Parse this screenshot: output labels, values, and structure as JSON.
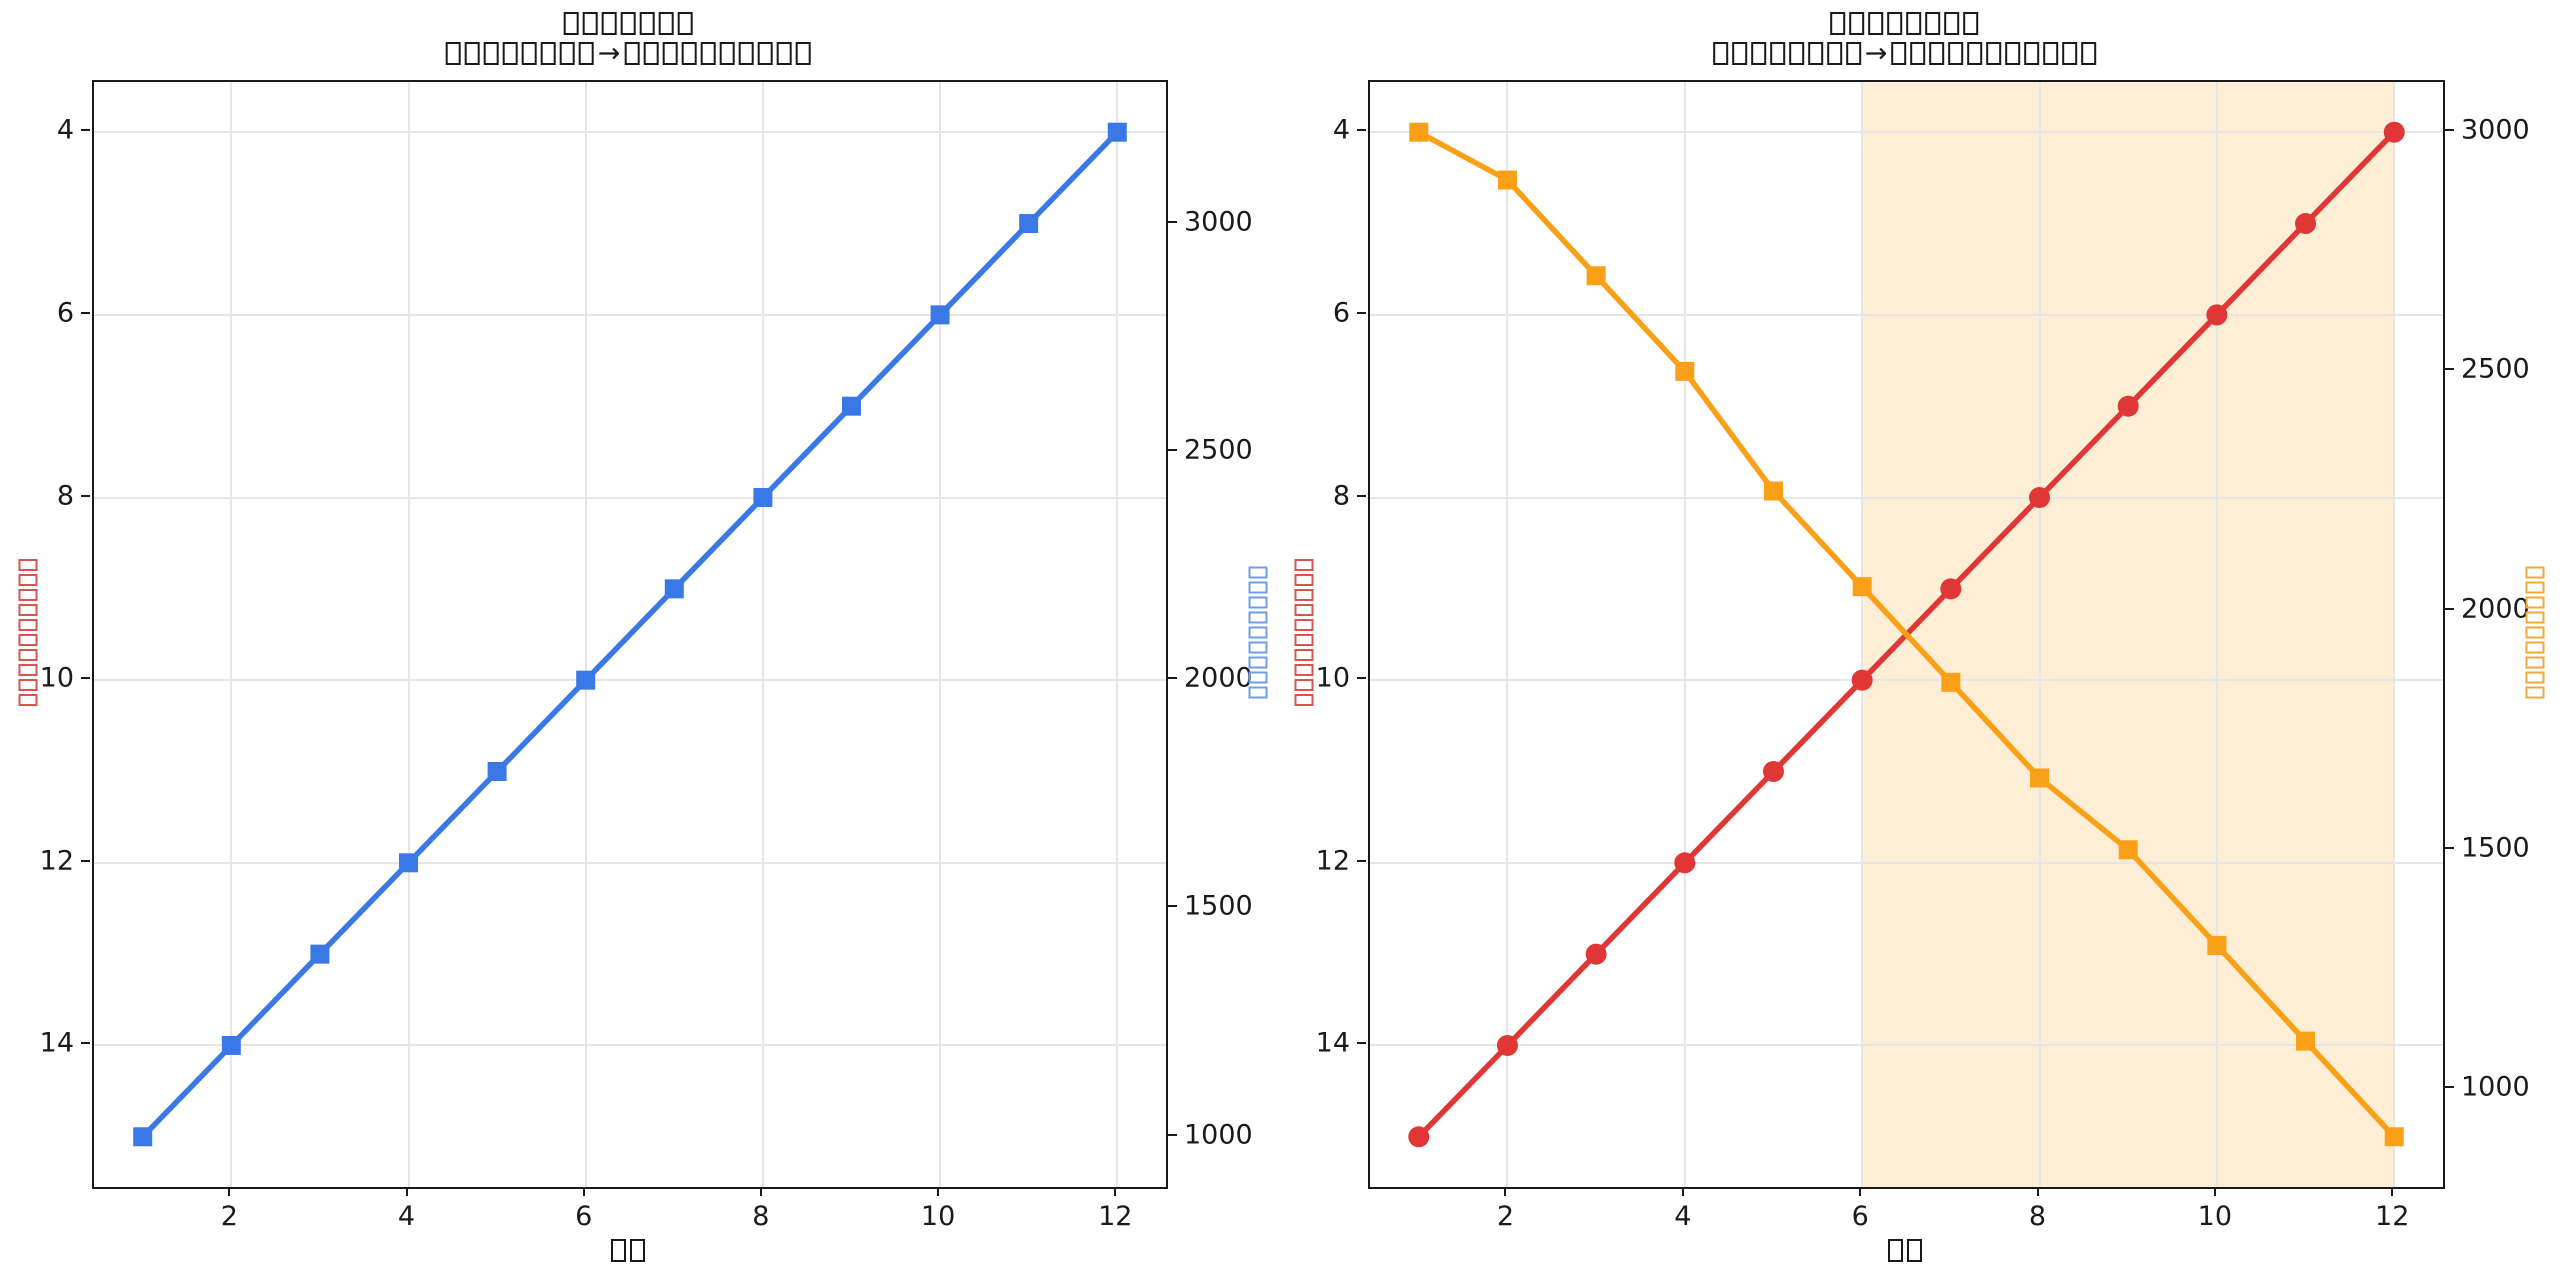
{
  "chart_data": [
    {
      "type": "line",
      "title_lines": [
        "□□□□□□□",
        "□□□□□□□□→□□□□□□□□□□"
      ],
      "xlabel": "□□",
      "x": [
        1,
        2,
        3,
        4,
        5,
        6,
        7,
        8,
        9,
        10,
        11,
        12
      ],
      "x_ticks": [
        2,
        4,
        6,
        8,
        10,
        12
      ],
      "xlim": [
        0.45,
        12.55
      ],
      "grid": true,
      "axes": {
        "left": {
          "label": "□□□□□□□□□□",
          "label_color": "#D9534F",
          "ticks": [
            4,
            6,
            8,
            10,
            12,
            14
          ],
          "lim": [
            3.45,
            15.55
          ],
          "inverted": true,
          "gridlines": true
        },
        "right": {
          "label": "□□□□□□□□□",
          "label_color": "#6F9CEB",
          "ticks": [
            1000,
            1500,
            2000,
            2500,
            3000
          ],
          "lim": [
            890,
            3310
          ],
          "inverted": false,
          "gridlines": false
        }
      },
      "series": [
        {
          "name": "series-blue",
          "axis": "left",
          "color": "#3B78E7",
          "marker": "square",
          "line_width": 5.5,
          "values": [
            15,
            14,
            13,
            12,
            11,
            10,
            9,
            8,
            7,
            6,
            5,
            4
          ]
        }
      ]
    },
    {
      "type": "line",
      "title_lines": [
        "□□□□□□□□",
        "□□□□□□□□→□□□□□□□□□□□"
      ],
      "xlabel": "□□",
      "x": [
        1,
        2,
        3,
        4,
        5,
        6,
        7,
        8,
        9,
        10,
        11,
        12
      ],
      "x_ticks": [
        2,
        4,
        6,
        8,
        10,
        12
      ],
      "xlim": [
        0.45,
        12.55
      ],
      "grid": true,
      "shade": {
        "x_from": 6,
        "x_to": 12,
        "color": "#F9A016",
        "alpha": 0.18
      },
      "axes": {
        "left": {
          "label": "□□□□□□□□□□",
          "label_color": "#D9534F",
          "ticks": [
            4,
            6,
            8,
            10,
            12,
            14
          ],
          "lim": [
            3.45,
            15.55
          ],
          "inverted": true,
          "gridlines": true
        },
        "right": {
          "label": "□□□□□□□□□",
          "label_color": "#F2A93B",
          "ticks": [
            1000,
            1500,
            2000,
            2500,
            3000
          ],
          "lim": [
            795,
            3105
          ],
          "inverted": false,
          "gridlines": false
        }
      },
      "series": [
        {
          "name": "series-red",
          "axis": "left",
          "color": "#E03636",
          "marker": "circle",
          "line_width": 5.5,
          "values": [
            15,
            14,
            13,
            12,
            11,
            10,
            9,
            8,
            7,
            6,
            5,
            4
          ]
        },
        {
          "name": "series-orange",
          "axis": "right",
          "color": "#F9A016",
          "marker": "square",
          "line_width": 5.5,
          "values": [
            3000,
            2900,
            2700,
            2500,
            2250,
            2050,
            1850,
            1650,
            1500,
            1300,
            1100,
            900
          ]
        }
      ]
    }
  ]
}
